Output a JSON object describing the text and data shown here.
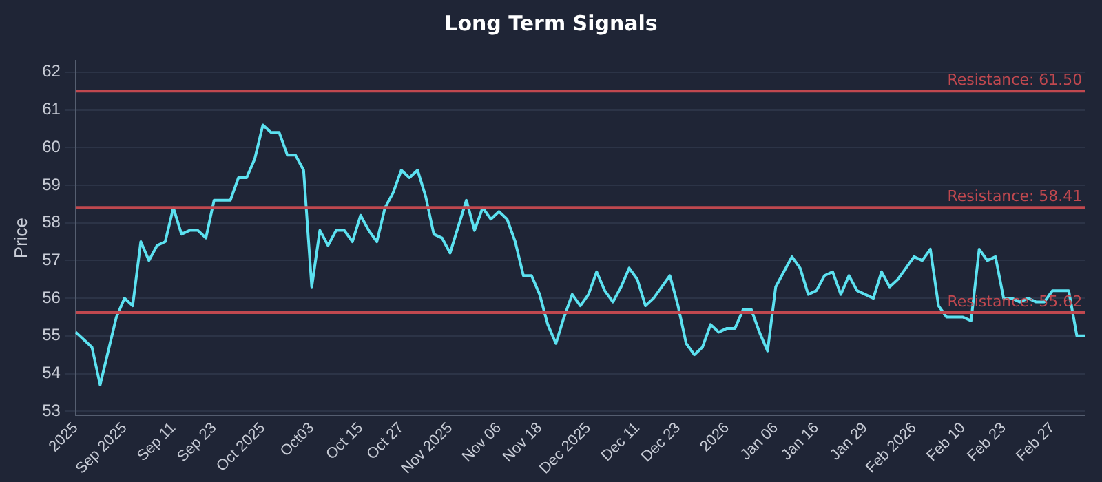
{
  "chart_data": {
    "type": "line",
    "title": "Long Term Signals",
    "ylabel": "Price",
    "categories": [
      "2025",
      null,
      null,
      null,
      null,
      null,
      "Sep 2025",
      null,
      null,
      null,
      null,
      null,
      "Sep 11",
      null,
      null,
      null,
      null,
      "Sep 23",
      null,
      null,
      null,
      null,
      null,
      "Oct 2025",
      null,
      null,
      null,
      null,
      null,
      "Oct03",
      null,
      null,
      null,
      null,
      null,
      "Oct 15",
      null,
      null,
      null,
      null,
      "Oct 27",
      null,
      null,
      null,
      null,
      null,
      "Nov 2025",
      null,
      null,
      null,
      null,
      null,
      "Nov 06",
      null,
      null,
      null,
      null,
      "Nov 18",
      null,
      null,
      null,
      null,
      null,
      "Dec 2025",
      null,
      null,
      null,
      null,
      null,
      "Dec 11",
      null,
      null,
      null,
      null,
      "Dec 23",
      null,
      null,
      null,
      null,
      null,
      "2026",
      null,
      null,
      null,
      null,
      null,
      "Jan 06",
      null,
      null,
      null,
      null,
      "Jan 16",
      null,
      null,
      null,
      null,
      null,
      "Jan 29",
      null,
      null,
      null,
      null,
      null,
      "Feb 2026",
      null,
      null,
      null,
      null,
      null,
      "Feb 10",
      null,
      null,
      null,
      null,
      "Feb 23",
      null,
      null,
      null,
      null,
      null,
      "Feb 27",
      null,
      null,
      null,
      null
    ],
    "series": [
      {
        "color": "#5ce1f0",
        "values": [
          55.1,
          54.9,
          54.7,
          53.7,
          54.6,
          55.5,
          56.0,
          55.8,
          57.5,
          57.0,
          57.4,
          57.5,
          58.4,
          57.7,
          57.8,
          57.8,
          57.6,
          58.6,
          58.6,
          58.6,
          59.2,
          59.2,
          59.7,
          60.6,
          60.4,
          60.4,
          59.8,
          59.8,
          59.4,
          56.3,
          57.8,
          57.4,
          57.8,
          57.8,
          57.5,
          58.2,
          57.8,
          57.5,
          58.4,
          58.8,
          59.4,
          59.2,
          59.4,
          58.7,
          57.7,
          57.6,
          57.2,
          57.9,
          58.6,
          57.8,
          58.4,
          58.1,
          58.3,
          58.1,
          57.5,
          56.6,
          56.6,
          56.1,
          55.3,
          54.8,
          55.5,
          56.1,
          55.8,
          56.1,
          56.7,
          56.2,
          55.9,
          56.3,
          56.8,
          56.5,
          55.8,
          56.0,
          56.3,
          56.6,
          55.8,
          54.8,
          54.5,
          54.7,
          55.3,
          55.1,
          55.2,
          55.2,
          55.7,
          55.7,
          55.1,
          54.6,
          56.3,
          56.7,
          57.1,
          56.8,
          56.1,
          56.2,
          56.6,
          56.7,
          56.1,
          56.6,
          56.2,
          56.1,
          56.0,
          56.7,
          56.3,
          56.5,
          56.8,
          57.1,
          57.0,
          57.3,
          55.8,
          55.5,
          55.5,
          55.5,
          55.4,
          57.3,
          57.0,
          57.1,
          56.0,
          56.0,
          55.9,
          56.0,
          55.9,
          55.9,
          56.2,
          56.2,
          56.2,
          55.0,
          55.0
        ]
      }
    ],
    "ylim": [
      52.9,
      62.3
    ],
    "yticks": [
      53,
      54,
      55,
      56,
      57,
      58,
      59,
      60,
      61,
      62
    ],
    "grid": "y",
    "marker": "none",
    "line_style": "solid",
    "ref_lines": [
      {
        "axis": "y",
        "value": 61.5,
        "label": "Resistance: 61.50",
        "color": "#c0484f"
      },
      {
        "axis": "y",
        "value": 58.41,
        "label": "Resistance: 58.41",
        "color": "#c0484f"
      },
      {
        "axis": "y",
        "value": 55.62,
        "label": "Resistance: 55.62",
        "color": "#c0484f"
      }
    ]
  }
}
